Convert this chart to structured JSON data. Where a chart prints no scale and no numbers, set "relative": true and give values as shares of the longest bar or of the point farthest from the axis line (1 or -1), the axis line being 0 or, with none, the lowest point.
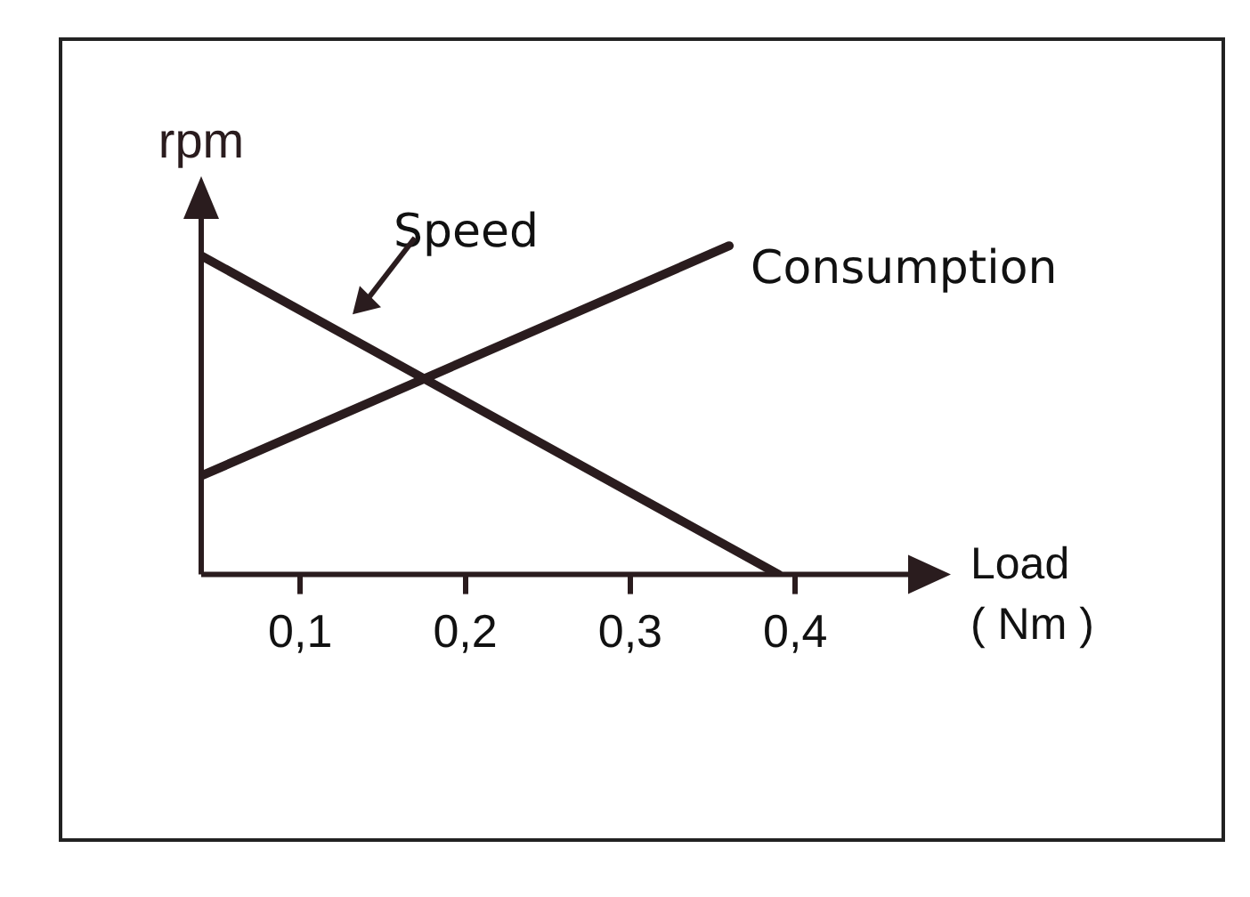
{
  "chart_data": {
    "type": "line",
    "relative": true,
    "ylabel": "rpm",
    "xlabel": "Load ( Nm )",
    "xlim": [
      0.04,
      0.49
    ],
    "xticks": [
      {
        "value": 0.1,
        "label": "0,1"
      },
      {
        "value": 0.2,
        "label": "0,2"
      },
      {
        "value": 0.3,
        "label": "0,3"
      },
      {
        "value": 0.4,
        "label": "0,4"
      }
    ],
    "series": [
      {
        "name": "Speed",
        "color": "#2a1c1e",
        "x": [
          0.04,
          0.39
        ],
        "values": [
          0.97,
          0
        ]
      },
      {
        "name": "Consumption",
        "color": "#2a1c1e",
        "x": [
          0.04,
          0.36
        ],
        "values": [
          0.3,
          1
        ]
      }
    ],
    "grid": false,
    "legend": false,
    "marker": "none",
    "line_style": "solid"
  }
}
